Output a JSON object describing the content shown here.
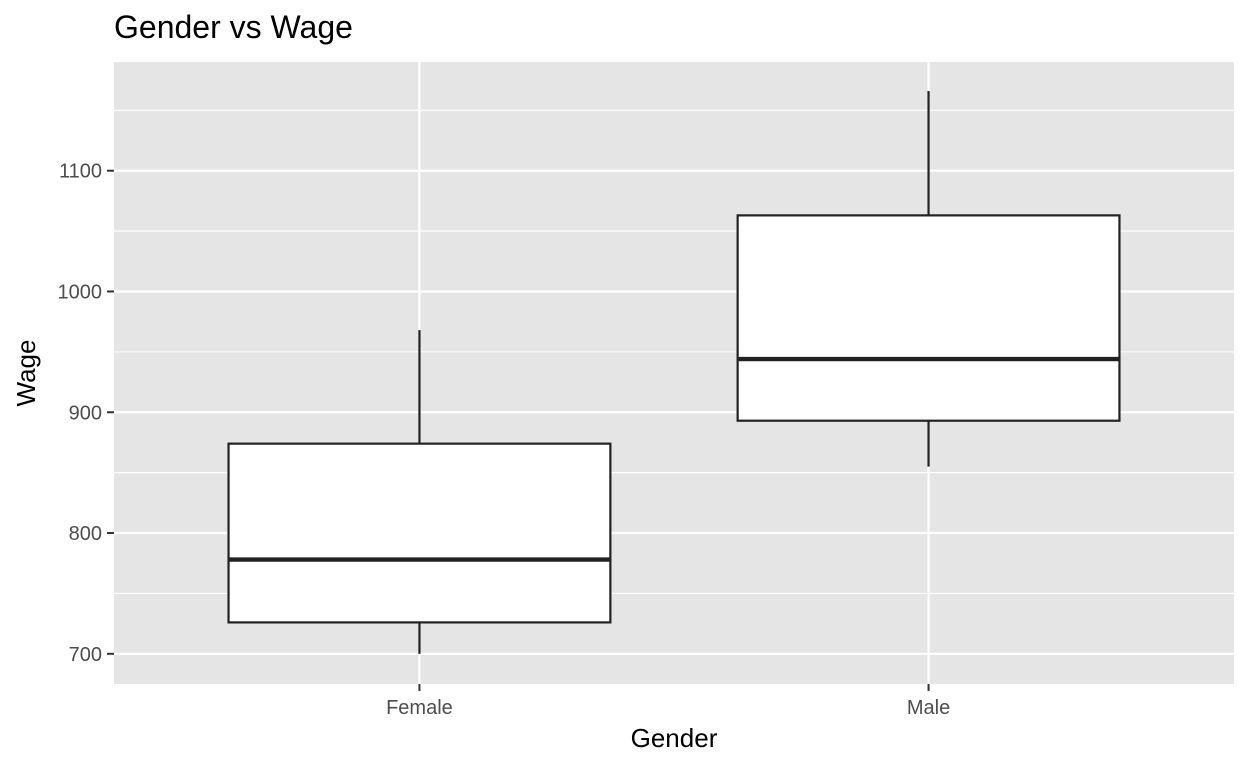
{
  "chart_data": {
    "type": "boxplot",
    "title": "Gender vs Wage",
    "xlabel": "Gender",
    "ylabel": "Wage",
    "categories": [
      "Female",
      "Male"
    ],
    "boxes": [
      {
        "category": "Female",
        "whisker_low": 700,
        "q1": 726,
        "median": 778,
        "q3": 874,
        "whisker_high": 968
      },
      {
        "category": "Male",
        "whisker_low": 855,
        "q1": 893,
        "median": 944,
        "q3": 1063,
        "whisker_high": 1166
      }
    ],
    "ylim": [
      675,
      1190
    ],
    "y_ticks": [
      700,
      800,
      900,
      1000,
      1100
    ],
    "grid": true,
    "colors": {
      "panel_background": "#e5e5e5",
      "grid": "#ffffff",
      "box_fill": "#ffffff",
      "box_stroke": "#222222",
      "tick_text": "#4d4d4d"
    }
  }
}
